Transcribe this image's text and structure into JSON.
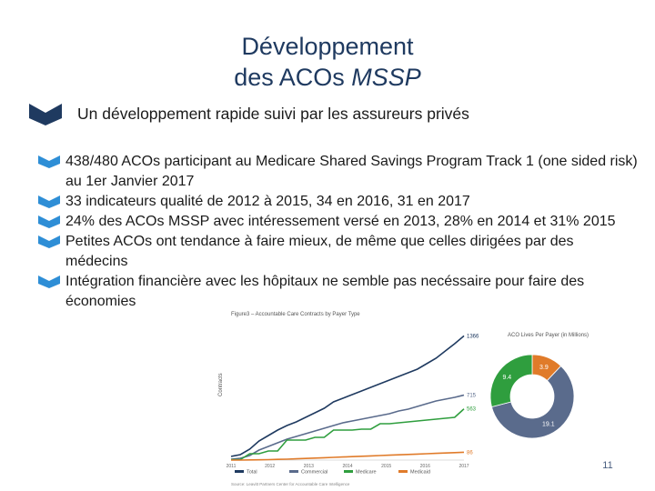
{
  "slide": {
    "title_line1": "Développement",
    "title_line2_a": "des ACOs ",
    "title_line2_b": "MSSP",
    "main_bullet": "Un développement rapide suivi par les assureurs privés",
    "bullets": [
      "438/480 ACOs participant au Medicare Shared Savings Program Track 1 (one sided risk) au 1er Janvier 2017",
      "33 indicateurs qualité de 2012 à 2015, 34 en 2016, 31 en 2017",
      "24% des ACOs MSSP avec intéressement versé en 2013, 28% en 2014 et 31% 2015",
      "Petites ACOs ont tendance à faire mieux, de même que celles dirigées par des médecins",
      "Intégration financière avec les hôpitaux ne semble pas necéssaire pour faire des économies"
    ],
    "page_number": "11",
    "colors": {
      "title": "#1f3a60",
      "bullet_icon": "#2e8ed6",
      "main_bullet_icon": "#1f3a60"
    }
  },
  "figure": {
    "line_chart": {
      "title": "Figure3 – Accountable Care Contracts by Payer Type",
      "ylabel": "Contracts",
      "x_years": [
        "2011",
        "2012",
        "2013",
        "2014",
        "2015",
        "2016",
        "2017"
      ],
      "legend": [
        "Total",
        "Commercial",
        "Medicare",
        "Medicaid"
      ],
      "source": "Source: Leavitt Partners Center for Accountable Care Intelligence"
    },
    "donut": {
      "title": "ACO Lives Per Payer (in Millions)"
    }
  },
  "chart_data": [
    {
      "type": "line",
      "title": "Figure3 – Accountable Care Contracts by Payer Type",
      "xlabel": "",
      "ylabel": "Contracts",
      "x": [
        0,
        1,
        2,
        3,
        4,
        5,
        6,
        7,
        8,
        9,
        10,
        11,
        12,
        13,
        14,
        15,
        16,
        17,
        18,
        19,
        20,
        21,
        22,
        23,
        24,
        25
      ],
      "ylim": [
        0,
        1400
      ],
      "series": [
        {
          "name": "Total",
          "color": "#1f3a60",
          "end_label": "1366",
          "values": [
            40,
            60,
            120,
            210,
            270,
            330,
            380,
            420,
            470,
            520,
            570,
            640,
            680,
            720,
            760,
            800,
            840,
            880,
            920,
            960,
            1000,
            1060,
            1120,
            1200,
            1280,
            1366
          ]
        },
        {
          "name": "Commercial",
          "color": "#5a6b8c",
          "end_label": "715",
          "values": [
            10,
            20,
            50,
            110,
            150,
            190,
            230,
            260,
            290,
            320,
            350,
            380,
            410,
            430,
            450,
            470,
            490,
            510,
            540,
            560,
            590,
            620,
            650,
            670,
            690,
            715
          ]
        },
        {
          "name": "Medicare",
          "color": "#2f9e3e",
          "end_label": "563",
          "values": [
            5,
            5,
            70,
            70,
            100,
            100,
            220,
            220,
            220,
            250,
            250,
            330,
            330,
            330,
            340,
            340,
            400,
            400,
            410,
            420,
            430,
            440,
            450,
            460,
            470,
            563
          ]
        },
        {
          "name": "Medicaid",
          "color": "#e07b2a",
          "end_label": "86",
          "values": [
            0,
            0,
            2,
            3,
            5,
            8,
            10,
            14,
            18,
            22,
            26,
            30,
            34,
            38,
            42,
            46,
            50,
            54,
            58,
            62,
            66,
            70,
            74,
            78,
            82,
            86
          ]
        }
      ]
    },
    {
      "type": "pie",
      "title": "ACO Lives Per Payer (in Millions)",
      "donut": true,
      "slices": [
        {
          "label": "3.9",
          "value": 3.9,
          "color": "#e07b2a"
        },
        {
          "label": "19.1",
          "value": 19.1,
          "color": "#5a6b8c"
        },
        {
          "label": "9.4",
          "value": 9.4,
          "color": "#2f9e3e"
        }
      ]
    }
  ]
}
